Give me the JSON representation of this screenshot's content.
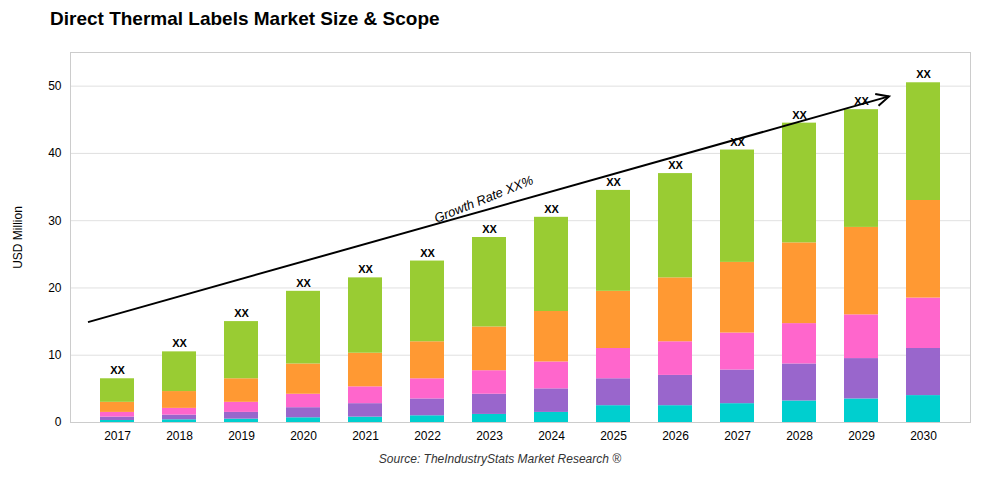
{
  "chart_data": {
    "type": "bar",
    "stacked": true,
    "title": "Direct Thermal Labels Market Size & Scope",
    "ylabel": "USD Million",
    "caption": "Source: TheIndustryStats Market Research ®",
    "categories": [
      2017,
      2018,
      2019,
      2020,
      2021,
      2022,
      2023,
      2024,
      2025,
      2026,
      2027,
      2028,
      2029,
      2030
    ],
    "series": [
      {
        "color": "#00CFCF",
        "values": [
          0.3,
          0.4,
          0.5,
          0.7,
          0.8,
          1.0,
          1.2,
          1.5,
          2.5,
          2.5,
          2.8,
          3.2,
          3.5,
          4.0
        ]
      },
      {
        "color": "#9966CC",
        "values": [
          0.5,
          0.7,
          1.0,
          1.5,
          2.0,
          2.5,
          3.0,
          3.5,
          4.0,
          4.5,
          5.0,
          5.5,
          6.0,
          7.0
        ]
      },
      {
        "color": "#FF66CC",
        "values": [
          0.7,
          1.0,
          1.5,
          2.0,
          2.5,
          3.0,
          3.5,
          4.0,
          4.5,
          5.0,
          5.5,
          6.0,
          6.5,
          7.5
        ]
      },
      {
        "color": "#FF9933",
        "values": [
          1.5,
          2.5,
          3.5,
          4.5,
          5.0,
          5.5,
          6.5,
          7.5,
          8.5,
          9.5,
          10.5,
          12.0,
          13.0,
          14.5
        ]
      },
      {
        "color": "#99CC33",
        "values": [
          3.5,
          5.9,
          8.5,
          10.8,
          11.2,
          12.0,
          13.3,
          14.0,
          15.0,
          15.5,
          16.7,
          17.8,
          17.5,
          17.5
        ]
      }
    ],
    "ylim": [
      0,
      55
    ],
    "yticks": [
      0,
      10,
      20,
      30,
      40,
      50
    ],
    "grid": true,
    "annotations": [
      {
        "text": "XX",
        "x": 2017
      },
      {
        "text": "XX",
        "x": 2018
      },
      {
        "text": "XX",
        "x": 2019
      },
      {
        "text": "XX",
        "x": 2020
      },
      {
        "text": "XX",
        "x": 2021
      },
      {
        "text": "XX",
        "x": 2022
      },
      {
        "text": "XX",
        "x": 2023
      },
      {
        "text": "XX",
        "x": 2024
      },
      {
        "text": "XX",
        "x": 2025
      },
      {
        "text": "XX",
        "x": 2026
      },
      {
        "text": "XX",
        "x": 2027
      },
      {
        "text": "XX",
        "x": 2028
      },
      {
        "text": "XX",
        "x": 2029
      },
      {
        "text": "XX",
        "x": 2030
      },
      {
        "text": "Growth Rate XX%",
        "arrow": true
      }
    ]
  }
}
